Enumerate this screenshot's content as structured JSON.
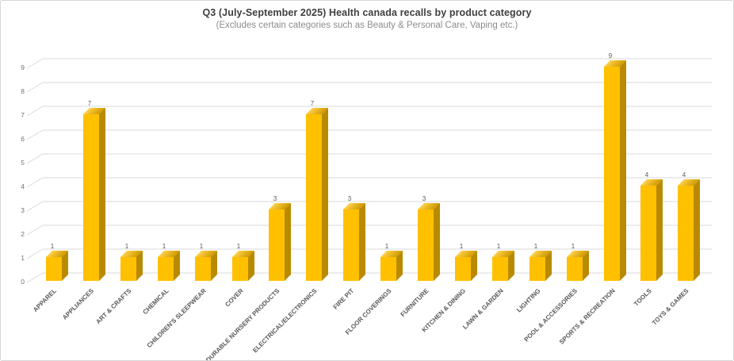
{
  "chart": {
    "title": "Q3 (July-September 2025) Health canada recalls by product category",
    "subtitle": "(Excludes certain categories such as Beauty & Personal Care, Vaping etc.)"
  },
  "chart_data": {
    "type": "bar",
    "style": "3d-column",
    "title": "Q3 (July-September 2025) Health canada recalls by product category",
    "subtitle": "(Excludes certain categories such as Beauty & Personal Care, Vaping etc.)",
    "categories": [
      "APPAREL",
      "APPLIANCES",
      "ART & CRAFTS",
      "CHEMICAL",
      "CHILDREN'S SLEEPWEAR",
      "COVER",
      "DURABLE NURSERY PRODUCTS",
      "ELECTRICAL/ELECTRONICS",
      "FIRE PIT",
      "FLOOR COVERINGS",
      "FURNITURE",
      "KITCHEN & DINING",
      "LAWN & GARDEN",
      "LIGHTING",
      "POOL & ACCESSORIES",
      "SPORTS & RECREATION",
      "TOOLS",
      "TOYS & GAMES"
    ],
    "values": [
      1,
      7,
      1,
      1,
      1,
      1,
      3,
      7,
      3,
      1,
      3,
      1,
      1,
      1,
      1,
      9,
      4,
      4
    ],
    "xlabel": "",
    "ylabel": "",
    "ylim": [
      0,
      9
    ],
    "ytick_step": 1,
    "grid": true,
    "legend": false,
    "data_labels": true,
    "colors": {
      "bar_front": "#FFC000",
      "bar_side": "#B98A00",
      "bar_top_light": "#FFD04A",
      "bar_top_dark": "#D09C00",
      "gridline": "#D9D9D9",
      "title_text": "#3F3F3F",
      "subtitle_text": "#8C8C8C",
      "tick_text": "#737373",
      "value_label_text": "#595959",
      "category_text": "#595959",
      "background": "#FFFFFF",
      "border": "#D7D7D7"
    }
  }
}
